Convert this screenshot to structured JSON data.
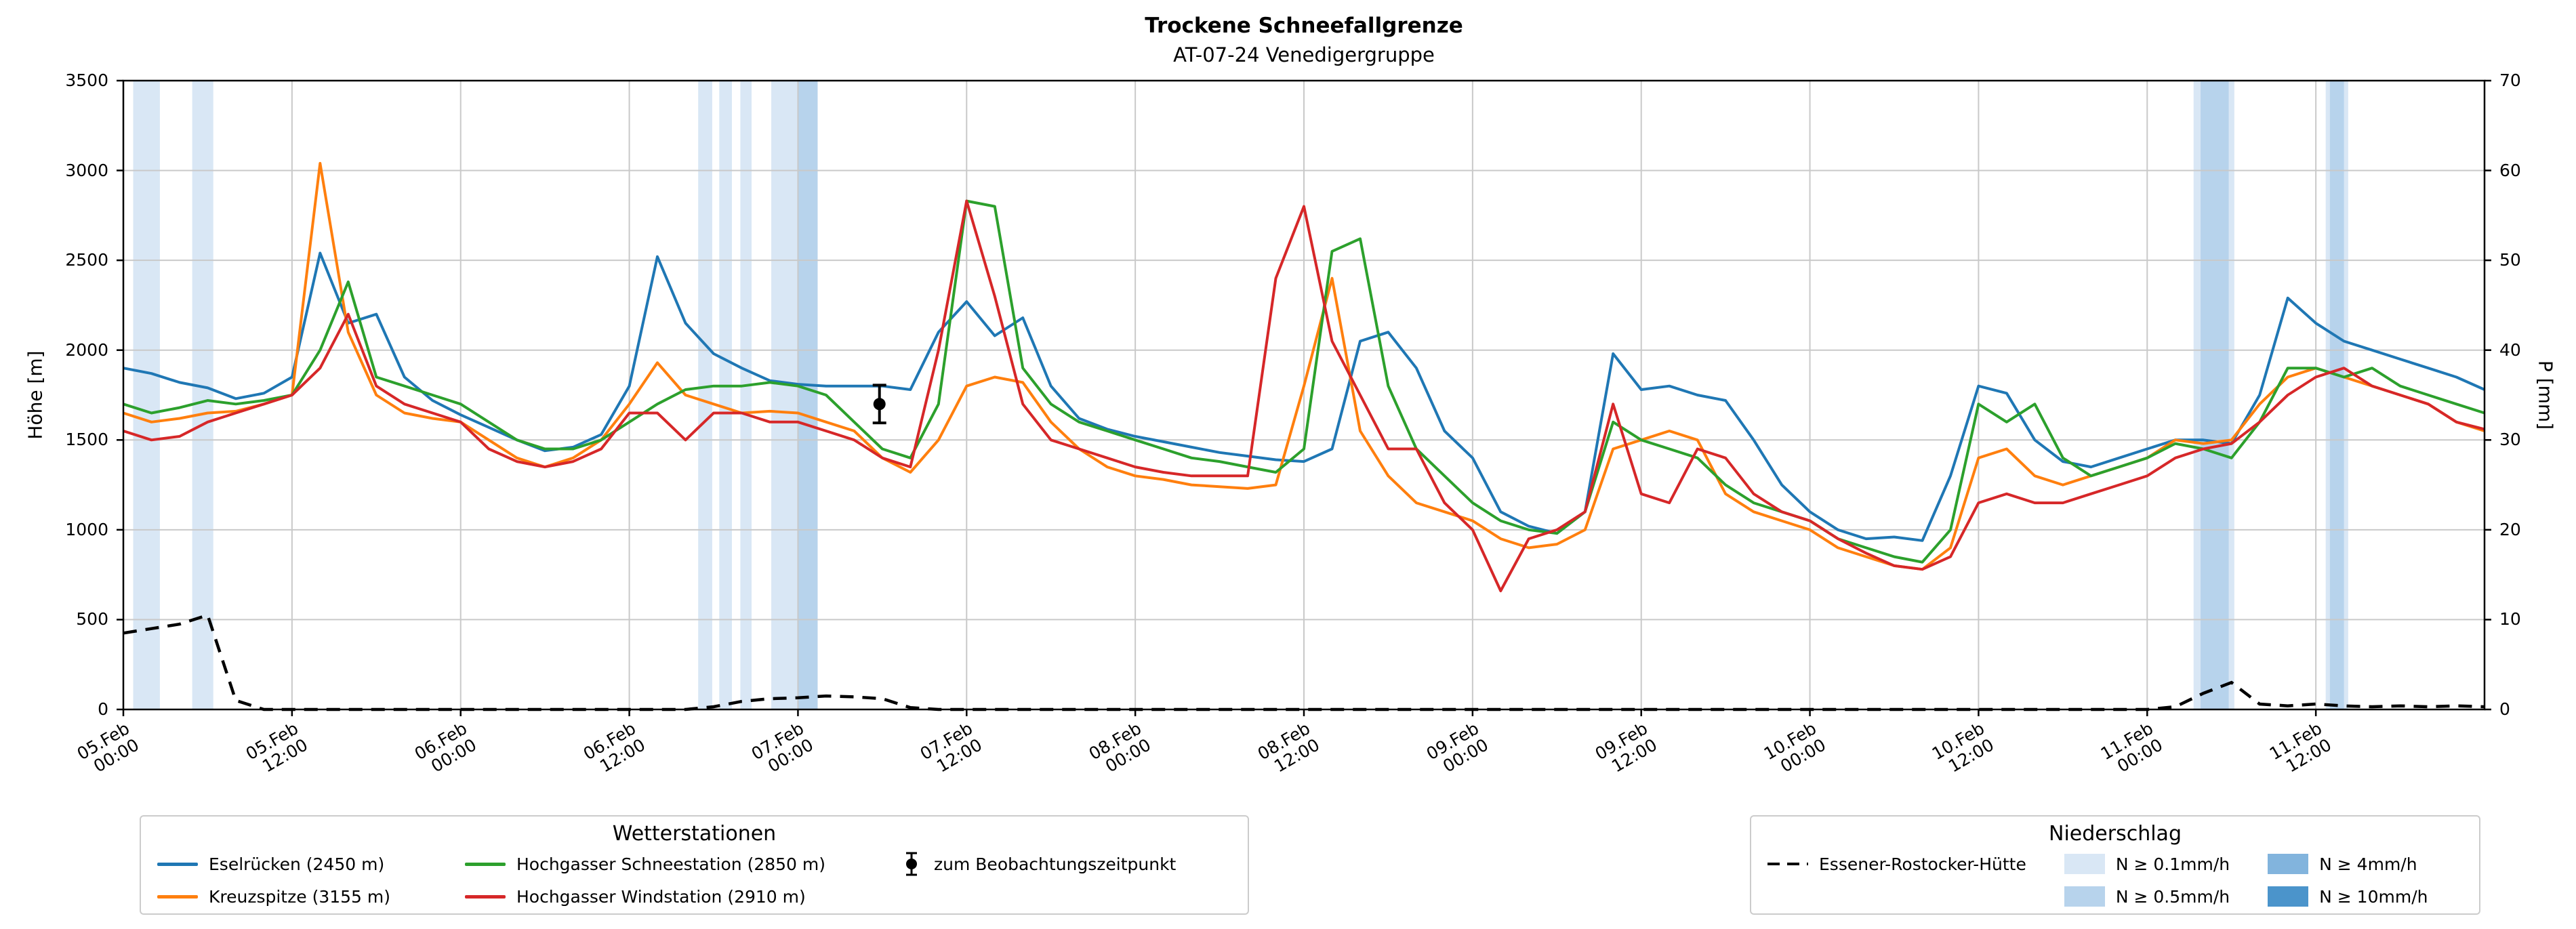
{
  "header": {
    "title": "Trockene Schneefallgrenze",
    "subtitle": "AT-07-24 Venedigergruppe"
  },
  "chart_data": {
    "type": "line",
    "title": "Trockene Schneefallgrenze",
    "subtitle": "AT-07-24 Venedigergruppe",
    "grid": true,
    "x_range_hours": [
      0,
      168
    ],
    "x_ticks": [
      {
        "hour": 0,
        "date": "05.Feb",
        "time": "00:00"
      },
      {
        "hour": 12,
        "date": "05.Feb",
        "time": "12:00"
      },
      {
        "hour": 24,
        "date": "06.Feb",
        "time": "00:00"
      },
      {
        "hour": 36,
        "date": "06.Feb",
        "time": "12:00"
      },
      {
        "hour": 48,
        "date": "07.Feb",
        "time": "00:00"
      },
      {
        "hour": 60,
        "date": "07.Feb",
        "time": "12:00"
      },
      {
        "hour": 72,
        "date": "08.Feb",
        "time": "00:00"
      },
      {
        "hour": 84,
        "date": "08.Feb",
        "time": "12:00"
      },
      {
        "hour": 96,
        "date": "09.Feb",
        "time": "00:00"
      },
      {
        "hour": 108,
        "date": "09.Feb",
        "time": "12:00"
      },
      {
        "hour": 120,
        "date": "10.Feb",
        "time": "00:00"
      },
      {
        "hour": 132,
        "date": "10.Feb",
        "time": "12:00"
      },
      {
        "hour": 144,
        "date": "11.Feb",
        "time": "00:00"
      },
      {
        "hour": 156,
        "date": "11.Feb",
        "time": "12:00"
      }
    ],
    "y_left_label": "Höhe [m]",
    "y_left_range": [
      0,
      3500
    ],
    "y_left_ticks": [
      0,
      500,
      1000,
      1500,
      2000,
      2500,
      3000,
      3500
    ],
    "y_right_label": "P [mm]",
    "y_right_range": [
      0,
      70
    ],
    "y_right_ticks": [
      0,
      10,
      20,
      30,
      40,
      50,
      60,
      70
    ],
    "x_hours": [
      0,
      2,
      4,
      6,
      8,
      10,
      12,
      14,
      16,
      18,
      20,
      22,
      24,
      26,
      28,
      30,
      32,
      34,
      36,
      38,
      40,
      42,
      44,
      46,
      48,
      50,
      52,
      54,
      56,
      58,
      60,
      62,
      64,
      66,
      68,
      70,
      72,
      74,
      76,
      78,
      80,
      82,
      84,
      86,
      88,
      90,
      92,
      94,
      96,
      98,
      100,
      102,
      104,
      106,
      108,
      110,
      112,
      114,
      116,
      118,
      120,
      122,
      124,
      126,
      128,
      130,
      132,
      134,
      136,
      138,
      140,
      142,
      144,
      146,
      148,
      150,
      152,
      154,
      156,
      158,
      160,
      162,
      164,
      166,
      168
    ],
    "series": [
      {
        "name": "Eselrücken (2450 m)",
        "color": "#1f77b4",
        "axis": "left",
        "unit": "m",
        "values_m": [
          1900,
          1870,
          1820,
          1790,
          1730,
          1760,
          1850,
          2540,
          2150,
          2200,
          1850,
          1720,
          1640,
          1570,
          1500,
          1440,
          1460,
          1530,
          1800,
          2520,
          2150,
          1980,
          1900,
          1830,
          1810,
          1800,
          1800,
          1800,
          1780,
          2100,
          2270,
          2080,
          2180,
          1800,
          1620,
          1560,
          1520,
          1490,
          1460,
          1430,
          1410,
          1390,
          1380,
          1450,
          2050,
          2100,
          1900,
          1550,
          1400,
          1100,
          1020,
          980,
          1100,
          1980,
          1780,
          1800,
          1750,
          1720,
          1500,
          1250,
          1100,
          1000,
          950,
          960,
          940,
          1300,
          1800,
          1760,
          1500,
          1380,
          1350,
          1400,
          1450,
          1500,
          1500,
          1480,
          1750,
          2290,
          2150,
          2050,
          2000,
          1950,
          1900,
          1850,
          1780
        ]
      },
      {
        "name": "Kreuzspitze (3155 m)",
        "color": "#ff7f0e",
        "axis": "left",
        "unit": "m",
        "values_m": [
          1650,
          1600,
          1620,
          1650,
          1660,
          1700,
          1750,
          3040,
          2100,
          1750,
          1650,
          1620,
          1600,
          1500,
          1400,
          1350,
          1400,
          1500,
          1700,
          1930,
          1750,
          1700,
          1650,
          1660,
          1650,
          1600,
          1550,
          1400,
          1320,
          1500,
          1800,
          1850,
          1820,
          1600,
          1450,
          1350,
          1300,
          1280,
          1250,
          1240,
          1230,
          1250,
          1800,
          2400,
          1550,
          1300,
          1150,
          1100,
          1050,
          950,
          900,
          920,
          1000,
          1450,
          1500,
          1550,
          1500,
          1200,
          1100,
          1050,
          1000,
          900,
          850,
          800,
          780,
          900,
          1400,
          1450,
          1300,
          1250,
          1300,
          1350,
          1400,
          1500,
          1480,
          1500,
          1700,
          1850,
          1900,
          1850,
          1800,
          1750,
          1700,
          1600,
          1550
        ]
      },
      {
        "name": "Hochgasser Schneestation (2850 m)",
        "color": "#2ca02c",
        "axis": "left",
        "unit": "m",
        "values_m": [
          1700,
          1650,
          1680,
          1720,
          1700,
          1720,
          1750,
          2000,
          2380,
          1850,
          1800,
          1750,
          1700,
          1600,
          1500,
          1450,
          1450,
          1500,
          1600,
          1700,
          1780,
          1800,
          1800,
          1820,
          1800,
          1750,
          1600,
          1450,
          1400,
          1700,
          2830,
          2800,
          1900,
          1700,
          1600,
          1550,
          1500,
          1450,
          1400,
          1380,
          1350,
          1320,
          1450,
          2550,
          2620,
          1800,
          1450,
          1300,
          1150,
          1050,
          1000,
          980,
          1100,
          1600,
          1500,
          1450,
          1400,
          1250,
          1150,
          1100,
          1050,
          950,
          900,
          850,
          820,
          1000,
          1700,
          1600,
          1700,
          1400,
          1300,
          1350,
          1400,
          1480,
          1450,
          1400,
          1600,
          1900,
          1900,
          1850,
          1900,
          1800,
          1750,
          1700,
          1650
        ]
      },
      {
        "name": "Hochgasser Windstation (2910 m)",
        "color": "#d62728",
        "axis": "left",
        "unit": "m",
        "values_m": [
          1550,
          1500,
          1520,
          1600,
          1650,
          1700,
          1750,
          1900,
          2200,
          1800,
          1700,
          1650,
          1600,
          1450,
          1380,
          1350,
          1380,
          1450,
          1650,
          1650,
          1500,
          1650,
          1650,
          1600,
          1600,
          1550,
          1500,
          1400,
          1350,
          2000,
          2830,
          2300,
          1700,
          1500,
          1450,
          1400,
          1350,
          1320,
          1300,
          1300,
          1300,
          2400,
          2800,
          2050,
          1750,
          1450,
          1450,
          1150,
          1000,
          660,
          950,
          1000,
          1100,
          1700,
          1200,
          1150,
          1450,
          1400,
          1200,
          1100,
          1050,
          950,
          870,
          800,
          780,
          850,
          1150,
          1200,
          1150,
          1150,
          1200,
          1250,
          1300,
          1400,
          1450,
          1480,
          1600,
          1750,
          1850,
          1900,
          1800,
          1750,
          1700,
          1600,
          1560
        ]
      }
    ],
    "precip_series": {
      "name": "Essener-Rostocker-Hütte",
      "style": "dashed",
      "color": "#000000",
      "axis": "right",
      "unit": "mm",
      "values_mm": [
        8.5,
        9,
        9.5,
        10.5,
        1,
        0,
        0,
        0,
        0,
        0,
        0,
        0,
        0,
        0,
        0,
        0,
        0,
        0,
        0,
        0,
        0,
        0.3,
        0.9,
        1.2,
        1.3,
        1.5,
        1.4,
        1.2,
        0.2,
        0,
        0,
        0,
        0,
        0,
        0,
        0,
        0,
        0,
        0,
        0,
        0,
        0,
        0,
        0,
        0,
        0,
        0,
        0,
        0,
        0,
        0,
        0,
        0,
        0,
        0,
        0,
        0,
        0,
        0,
        0,
        0,
        0,
        0,
        0,
        0,
        0,
        0,
        0,
        0,
        0,
        0,
        0,
        0,
        0.3,
        1.8,
        3,
        0.6,
        0.4,
        0.6,
        0.4,
        0.3,
        0.4,
        0.3,
        0.4,
        0.3
      ]
    },
    "precip_intensity_colors": {
      "0.1": "#d9e7f5",
      "0.5": "#b7d3ec",
      "4": "#82b4dd",
      "10": "#4b94cb"
    },
    "precip_spans": [
      {
        "from_hour": 0.7,
        "to_hour": 2.6,
        "intensity": "0.1"
      },
      {
        "from_hour": 4.9,
        "to_hour": 6.4,
        "intensity": "0.1"
      },
      {
        "from_hour": 40.9,
        "to_hour": 41.9,
        "intensity": "0.1"
      },
      {
        "from_hour": 42.4,
        "to_hour": 43.3,
        "intensity": "0.1"
      },
      {
        "from_hour": 43.9,
        "to_hour": 44.7,
        "intensity": "0.1"
      },
      {
        "from_hour": 46.1,
        "to_hour": 49.4,
        "intensity": "0.1"
      },
      {
        "from_hour": 48.0,
        "to_hour": 49.4,
        "intensity": "0.5"
      },
      {
        "from_hour": 147.3,
        "to_hour": 150.2,
        "intensity": "0.1"
      },
      {
        "from_hour": 147.8,
        "to_hour": 149.8,
        "intensity": "0.5"
      },
      {
        "from_hour": 156.7,
        "to_hour": 158.3,
        "intensity": "0.1"
      },
      {
        "from_hour": 157.0,
        "to_hour": 158.0,
        "intensity": "0.5"
      }
    ],
    "observation": {
      "label": "zum Beobachtungszeitpunkt",
      "hour": 53.8,
      "elevation_m": 1700,
      "error_m": 105
    }
  },
  "legend_stations": {
    "title": "Wetterstationen",
    "columns": [
      [
        0,
        1
      ],
      [
        2,
        3
      ],
      [
        4
      ]
    ],
    "entries": [
      {
        "label": "Eselrücken (2450 m)",
        "marker": "line",
        "color": "#1f77b4"
      },
      {
        "label": "Kreuzspitze (3155 m)",
        "marker": "line",
        "color": "#ff7f0e"
      },
      {
        "label": "Hochgasser Schneestation (2850 m)",
        "marker": "line",
        "color": "#2ca02c"
      },
      {
        "label": "Hochgasser Windstation (2910 m)",
        "marker": "line",
        "color": "#d62728"
      },
      {
        "label": "zum Beobachtungszeitpunkt",
        "marker": "errorbar-dot",
        "color": "#000000"
      }
    ]
  },
  "legend_precip": {
    "title": "Niederschlag",
    "columns": [
      [
        0
      ],
      [
        1,
        2
      ],
      [
        3,
        4
      ]
    ],
    "entries": [
      {
        "label": "Essener-Rostocker-Hütte",
        "marker": "dashed-line",
        "color": "#000000"
      },
      {
        "label": "N ≥ 0.1mm/h",
        "marker": "patch",
        "color": "#d9e7f5"
      },
      {
        "label": "N ≥ 0.5mm/h",
        "marker": "patch",
        "color": "#b7d3ec"
      },
      {
        "label": "N ≥ 4mm/h",
        "marker": "patch",
        "color": "#82b4dd"
      },
      {
        "label": "N ≥ 10mm/h",
        "marker": "patch",
        "color": "#4b94cb"
      }
    ]
  }
}
